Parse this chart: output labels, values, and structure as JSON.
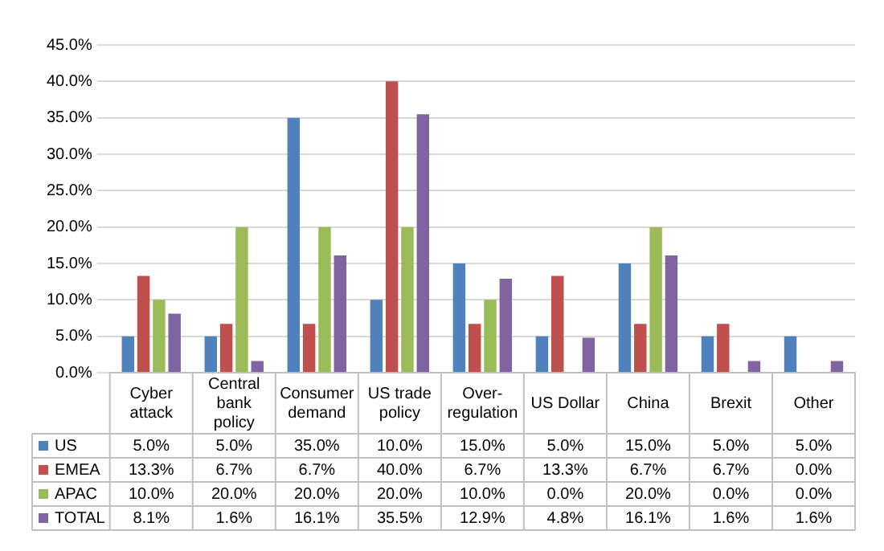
{
  "chart_data": {
    "type": "bar",
    "categories": [
      "Cyber attack",
      "Central bank policy",
      "Consumer demand",
      "US trade policy",
      "Over-regulation",
      "US Dollar",
      "China",
      "Brexit",
      "Other"
    ],
    "series": [
      {
        "name": "US",
        "color": "#4f81bd",
        "values": [
          5.0,
          5.0,
          35.0,
          10.0,
          15.0,
          5.0,
          15.0,
          5.0,
          5.0
        ],
        "value_labels": [
          "5.0%",
          "5.0%",
          "35.0%",
          "10.0%",
          "15.0%",
          "5.0%",
          "15.0%",
          "5.0%",
          "5.0%"
        ]
      },
      {
        "name": "EMEA",
        "color": "#c0504d",
        "values": [
          13.3,
          6.7,
          6.7,
          40.0,
          6.7,
          13.3,
          6.7,
          6.7,
          0.0
        ],
        "value_labels": [
          "13.3%",
          "6.7%",
          "6.7%",
          "40.0%",
          "6.7%",
          "13.3%",
          "6.7%",
          "6.7%",
          "0.0%"
        ]
      },
      {
        "name": "APAC",
        "color": "#9bbb59",
        "values": [
          10.0,
          20.0,
          20.0,
          20.0,
          10.0,
          0.0,
          20.0,
          0.0,
          0.0
        ],
        "value_labels": [
          "10.0%",
          "20.0%",
          "20.0%",
          "20.0%",
          "10.0%",
          "0.0%",
          "20.0%",
          "0.0%",
          "0.0%"
        ]
      },
      {
        "name": "TOTAL",
        "color": "#8064a2",
        "values": [
          8.1,
          1.6,
          16.1,
          35.5,
          12.9,
          4.8,
          16.1,
          1.6,
          1.6
        ],
        "value_labels": [
          "8.1%",
          "1.6%",
          "16.1%",
          "35.5%",
          "12.9%",
          "4.8%",
          "16.1%",
          "1.6%",
          "1.6%"
        ]
      }
    ],
    "ylim": [
      0,
      45
    ],
    "yticks": [
      {
        "value": 0,
        "label": "0.0%"
      },
      {
        "value": 5,
        "label": "5.0%"
      },
      {
        "value": 10,
        "label": "10.0%"
      },
      {
        "value": 15,
        "label": "15.0%"
      },
      {
        "value": 20,
        "label": "20.0%"
      },
      {
        "value": 25,
        "label": "25.0%"
      },
      {
        "value": 30,
        "label": "30.0%"
      },
      {
        "value": 35,
        "label": "35.0%"
      },
      {
        "value": 40,
        "label": "40.0%"
      },
      {
        "value": 45,
        "label": "45.0%"
      }
    ],
    "grid": "y",
    "legend": "bottom"
  }
}
